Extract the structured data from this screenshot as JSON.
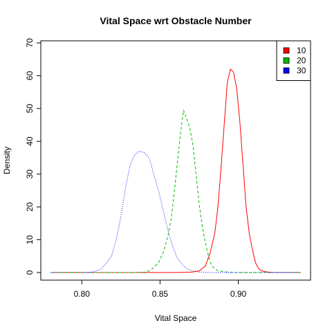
{
  "chart_data": {
    "type": "line",
    "title": "Vital Space wrt Obstacle Number",
    "xlabel": "Vital Space",
    "ylabel": "Density",
    "xlim": [
      0.78,
      0.94
    ],
    "ylim": [
      0,
      70
    ],
    "xticks": [
      0.8,
      0.85,
      0.9
    ],
    "xtick_labels": [
      "0.80",
      "0.85",
      "0.90"
    ],
    "yticks": [
      0,
      10,
      20,
      30,
      40,
      50,
      60,
      70
    ],
    "ytick_labels": [
      "0",
      "10",
      "20",
      "30",
      "40",
      "50",
      "60",
      "70"
    ],
    "grid": false,
    "legend_position": "top-right",
    "series": [
      {
        "name": "10",
        "color": "#ff0000",
        "dash": "solid",
        "points": [
          [
            0.78,
            0
          ],
          [
            0.86,
            0
          ],
          [
            0.87,
            0.1
          ],
          [
            0.875,
            0.5
          ],
          [
            0.879,
            2
          ],
          [
            0.882,
            6
          ],
          [
            0.885,
            12
          ],
          [
            0.887,
            20
          ],
          [
            0.889,
            32
          ],
          [
            0.891,
            45
          ],
          [
            0.893,
            58
          ],
          [
            0.895,
            62
          ],
          [
            0.897,
            61
          ],
          [
            0.899,
            56
          ],
          [
            0.901,
            46
          ],
          [
            0.903,
            33
          ],
          [
            0.905,
            20
          ],
          [
            0.907,
            12
          ],
          [
            0.909,
            7
          ],
          [
            0.911,
            3
          ],
          [
            0.913,
            1.2
          ],
          [
            0.915,
            0.5
          ],
          [
            0.918,
            0.2
          ],
          [
            0.922,
            0
          ],
          [
            0.94,
            0
          ]
        ]
      },
      {
        "name": "20",
        "color": "#00bb00",
        "dash": "dashed",
        "points": [
          [
            0.78,
            0
          ],
          [
            0.835,
            0
          ],
          [
            0.84,
            0.1
          ],
          [
            0.843,
            0.5
          ],
          [
            0.846,
            1.5
          ],
          [
            0.849,
            3
          ],
          [
            0.852,
            6
          ],
          [
            0.855,
            11
          ],
          [
            0.857,
            16
          ],
          [
            0.859,
            24
          ],
          [
            0.861,
            33
          ],
          [
            0.863,
            42
          ],
          [
            0.865,
            49.5
          ],
          [
            0.867,
            47
          ],
          [
            0.869,
            44
          ],
          [
            0.871,
            39
          ],
          [
            0.873,
            30
          ],
          [
            0.875,
            21
          ],
          [
            0.877,
            14
          ],
          [
            0.879,
            9
          ],
          [
            0.881,
            5
          ],
          [
            0.883,
            2
          ],
          [
            0.887,
            0.5
          ],
          [
            0.892,
            0.2
          ],
          [
            0.897,
            0
          ],
          [
            0.94,
            0
          ]
        ]
      },
      {
        "name": "30",
        "color": "#0000ff",
        "dash": "dotted",
        "points": [
          [
            0.78,
            0
          ],
          [
            0.804,
            0
          ],
          [
            0.808,
            0.3
          ],
          [
            0.812,
            1
          ],
          [
            0.816,
            3
          ],
          [
            0.819,
            5
          ],
          [
            0.822,
            10
          ],
          [
            0.825,
            17
          ],
          [
            0.828,
            26
          ],
          [
            0.831,
            33
          ],
          [
            0.834,
            36
          ],
          [
            0.837,
            37
          ],
          [
            0.84,
            36.5
          ],
          [
            0.843,
            35
          ],
          [
            0.846,
            30
          ],
          [
            0.849,
            25
          ],
          [
            0.852,
            19
          ],
          [
            0.855,
            13
          ],
          [
            0.858,
            8
          ],
          [
            0.861,
            4.5
          ],
          [
            0.864,
            2.5
          ],
          [
            0.867,
            1.2
          ],
          [
            0.87,
            0.6
          ],
          [
            0.874,
            0.2
          ],
          [
            0.88,
            0
          ],
          [
            0.94,
            0
          ]
        ]
      }
    ]
  }
}
